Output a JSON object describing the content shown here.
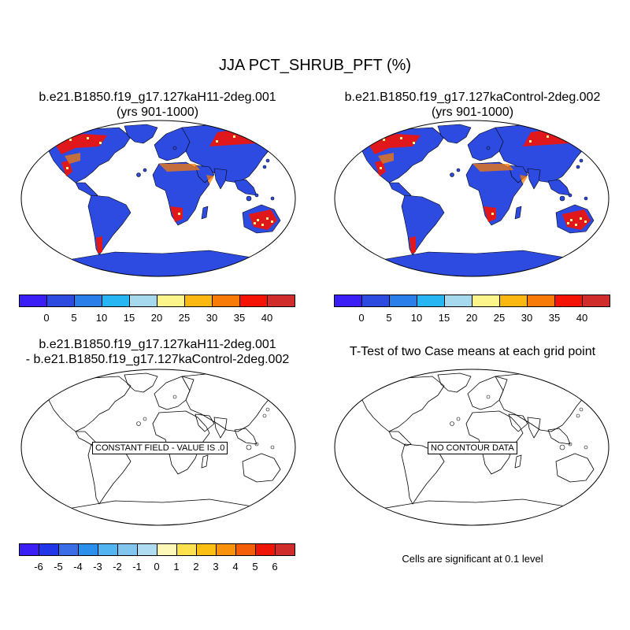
{
  "title": "JJA PCT_SHRUB_PFT (%)",
  "panels": [
    {
      "title_line1": "b.e21.B1850.f19_g17.127kaH11-2deg.001",
      "title_line2": "(yrs 901-1000)",
      "filled": true
    },
    {
      "title_line1": "b.e21.B1850.f19_g17.127kaControl-2deg.002",
      "title_line2": "(yrs 901-1000)",
      "filled": true
    },
    {
      "title_line1": "b.e21.B1850.f19_g17.127kaH11-2deg.001",
      "title_line2": "- b.e21.B1850.f19_g17.127kaControl-2deg.002",
      "filled": false,
      "label": "CONSTANT FIELD - VALUE IS .0"
    },
    {
      "title_line1": "T-Test of two Case means at each grid point",
      "title_line2": "",
      "filled": false,
      "label": "NO CONTOUR DATA"
    }
  ],
  "colorbar_top": {
    "colors": [
      "#3a1ef5",
      "#2d4be0",
      "#2a7fe8",
      "#27b6f2",
      "#a6d8ee",
      "#fbf58b",
      "#fbb810",
      "#f87a07",
      "#f51305",
      "#d02c2c"
    ],
    "labels": [
      "0",
      "5",
      "10",
      "15",
      "20",
      "25",
      "30",
      "35",
      "40"
    ]
  },
  "colorbar_diff": {
    "colors": [
      "#3a1ef5",
      "#2136e6",
      "#3b6ee6",
      "#2b90ec",
      "#52b5f2",
      "#82c6ef",
      "#b0dcf2",
      "#fef8b8",
      "#fde24e",
      "#fbbf14",
      "#f9910b",
      "#f55e08",
      "#ef1607",
      "#cf2c2c"
    ],
    "labels": [
      "-6",
      "-5",
      "-4",
      "-3",
      "-2",
      "-1",
      "0",
      "1",
      "2",
      "3",
      "4",
      "5",
      "6"
    ]
  },
  "significance_note": "Cells are significant at 0.1 level",
  "map_colors": {
    "ocean": "#ffffff",
    "land": "#2d4be0",
    "shrub_high": "#f51305",
    "shrub_mid": "#f87a07",
    "shrub_low": "#fbf58b",
    "coast": "#000000"
  }
}
